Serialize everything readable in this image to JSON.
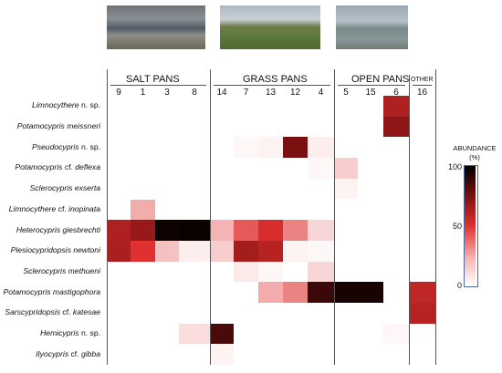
{
  "chart_data": {
    "type": "heatmap",
    "groups": [
      {
        "name": "SALT PANS",
        "sites": [
          "9",
          "1",
          "3",
          "8"
        ]
      },
      {
        "name": "GRASS PANS",
        "sites": [
          "14",
          "7",
          "13",
          "12",
          "4"
        ]
      },
      {
        "name": "OPEN PANS",
        "sites": [
          "5",
          "15",
          "6"
        ]
      },
      {
        "name": "OTHER",
        "sites": [
          "16"
        ]
      }
    ],
    "sites": [
      "9",
      "1",
      "3",
      "8",
      "14",
      "7",
      "13",
      "12",
      "4",
      "5",
      "15",
      "6",
      "16"
    ],
    "species": [
      {
        "genus": "Limnocythere",
        "epithet": "n. sp."
      },
      {
        "genus": "Potamocypris",
        "epithet": "meissneri"
      },
      {
        "genus": "Pseudocypris",
        "epithet": "n. sp."
      },
      {
        "genus": "Potamocypris",
        "epithet": "cf. deflexa"
      },
      {
        "genus": "Sclerocypris",
        "epithet": "exserta"
      },
      {
        "genus": "Limnocythere",
        "epithet": "cf. inopinata"
      },
      {
        "genus": "Heterocypris",
        "epithet": "giesbrechti"
      },
      {
        "genus": "Plesiocypridopsis",
        "epithet": "newtoni"
      },
      {
        "genus": "Sclerocypris",
        "epithet": "methueni"
      },
      {
        "genus": "Potamocypris",
        "epithet": "mastigophora"
      },
      {
        "genus": "Sarscypridopsis",
        "epithet": "cf. katesae"
      },
      {
        "genus": "Hemicypris",
        "epithet": "n. sp."
      },
      {
        "genus": "Ilyocypris",
        "epithet": "cf. gibba"
      }
    ],
    "values": [
      [
        0,
        0,
        0,
        0,
        0,
        0,
        0,
        0,
        0,
        0,
        0,
        62,
        0
      ],
      [
        0,
        0,
        0,
        0,
        0,
        0,
        0,
        0,
        0,
        0,
        0,
        70,
        0
      ],
      [
        0,
        0,
        0,
        0,
        0,
        2,
        3,
        75,
        4,
        0,
        0,
        0,
        0
      ],
      [
        0,
        0,
        0,
        0,
        0,
        0,
        0,
        0,
        2,
        12,
        0,
        0,
        0
      ],
      [
        0,
        0,
        0,
        0,
        0,
        0,
        0,
        0,
        0,
        3,
        0,
        0,
        0
      ],
      [
        0,
        20,
        0,
        0,
        0,
        0,
        0,
        0,
        0,
        0,
        0,
        0,
        0
      ],
      [
        62,
        68,
        97,
        98,
        18,
        40,
        52,
        30,
        10,
        0,
        0,
        0,
        0
      ],
      [
        63,
        50,
        15,
        4,
        12,
        65,
        60,
        3,
        2,
        0,
        0,
        0,
        0
      ],
      [
        0,
        0,
        0,
        0,
        0,
        5,
        2,
        0,
        10,
        0,
        0,
        0,
        0
      ],
      [
        0,
        0,
        0,
        0,
        0,
        0,
        20,
        30,
        88,
        95,
        95,
        0,
        58
      ],
      [
        0,
        0,
        0,
        0,
        0,
        0,
        0,
        0,
        0,
        0,
        0,
        0,
        60
      ],
      [
        0,
        0,
        0,
        8,
        85,
        0,
        0,
        0,
        0,
        0,
        0,
        2,
        0
      ],
      [
        0,
        0,
        0,
        0,
        3,
        0,
        0,
        0,
        0,
        0,
        0,
        0,
        0
      ]
    ],
    "colorbar": {
      "title_line1": "ABUNDANCE",
      "title_line2": "(%)",
      "min": 0,
      "max": 100,
      "ticks": [
        "100",
        "50",
        "0"
      ]
    },
    "colors": {
      "low": "#ffffff",
      "mid": "#e03030",
      "high": "#7a1010",
      "max": "#000000"
    }
  }
}
